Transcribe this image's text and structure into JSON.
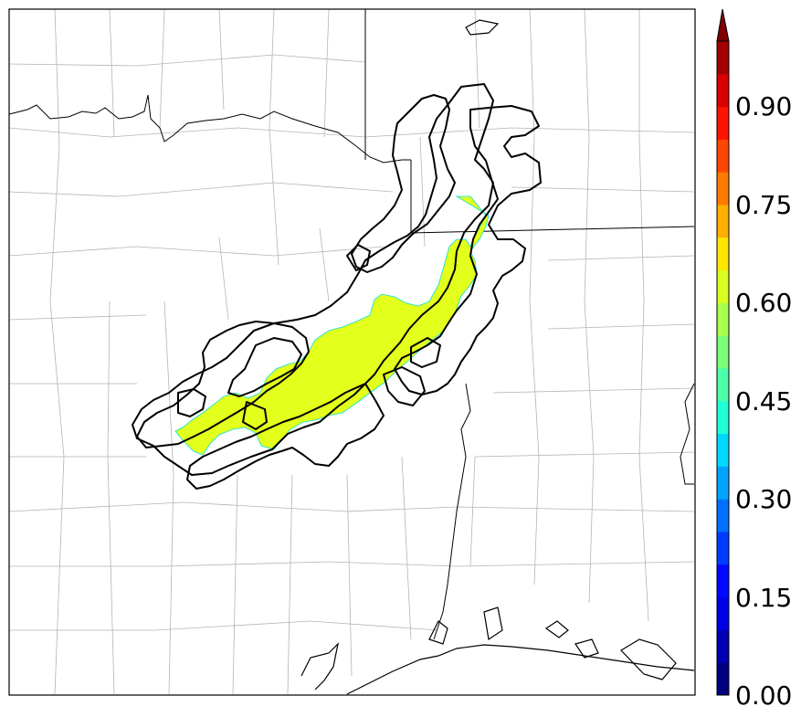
{
  "colorbar": {
    "ticks": [
      "0.00",
      "0.15",
      "0.30",
      "0.45",
      "0.60",
      "0.75",
      "0.90"
    ],
    "min": 0.0,
    "max": 1.0,
    "step": 0.05,
    "extend": "max",
    "colormap": "jet",
    "colors": [
      "#00007f",
      "#0000b2",
      "#0000e5",
      "#0008ff",
      "#003cff",
      "#0070ff",
      "#00a4ff",
      "#00d8ff",
      "#1effd8",
      "#4cffa8",
      "#7cff79",
      "#a8ff4c",
      "#d8ff1e",
      "#ffe600",
      "#ffb000",
      "#ff7a00",
      "#ff4600",
      "#ff1200",
      "#d80000",
      "#a30000"
    ],
    "extend_color": "#7f0000"
  },
  "map": {
    "background": "#ffffff",
    "county_line_color": "#b4b4b4",
    "state_line_color": "#000000",
    "coastline_color": "#000000",
    "contour_color": "#000000",
    "filled_region_value": 0.62,
    "filled_region_color": "#e3ff1c"
  }
}
